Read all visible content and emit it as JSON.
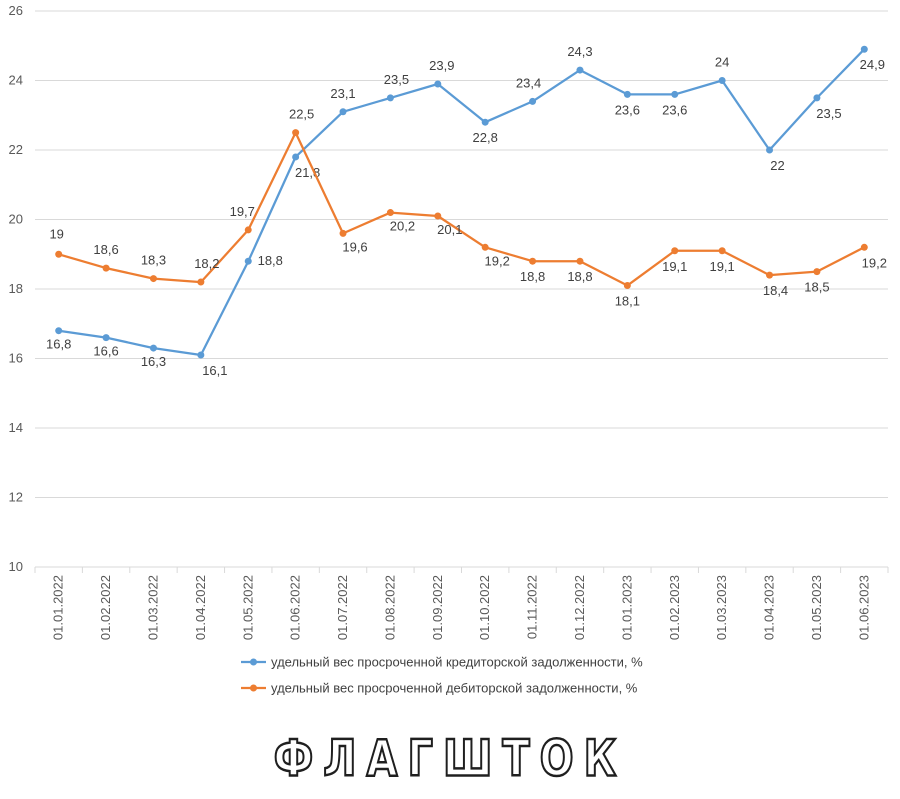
{
  "chart_data": {
    "type": "line",
    "title": "",
    "xlabel": "",
    "ylabel": "",
    "ylim": [
      10,
      26
    ],
    "yticks": [
      10,
      12,
      14,
      16,
      18,
      20,
      22,
      24,
      26
    ],
    "grid": "horizontal",
    "legend_position": "bottom",
    "categories": [
      "01.01.2022",
      "01.02.2022",
      "01.03.2022",
      "01.04.2022",
      "01.05.2022",
      "01.06.2022",
      "01.07.2022",
      "01.08.2022",
      "01.09.2022",
      "01.10.2022",
      "01.11.2022",
      "01.12.2022",
      "01.01.2023",
      "01.02.2023",
      "01.03.2023",
      "01.04.2023",
      "01.05.2023",
      "01.06.2023"
    ],
    "series": [
      {
        "name": "удельный вес просроченной кредиторской задолженности, %",
        "color": "#5b9bd5",
        "values": [
          16.8,
          16.6,
          16.3,
          16.1,
          18.8,
          21.8,
          23.1,
          23.5,
          23.9,
          22.8,
          23.4,
          24.3,
          23.6,
          23.6,
          24,
          22,
          23.5,
          24.9
        ],
        "labels": [
          "16,8",
          "16,6",
          "16,3",
          "16,1",
          "18,8",
          "21,8",
          "23,1",
          "23,5",
          "23,9",
          "22,8",
          "23,4",
          "24,3",
          "23,6",
          "23,6",
          "24",
          "22",
          "23,5",
          "24,9"
        ]
      },
      {
        "name": "удельный вес просроченной дебиторской задолженности, %",
        "color": "#ed7d31",
        "values": [
          19,
          18.6,
          18.3,
          18.2,
          19.7,
          22.5,
          19.6,
          20.2,
          20.1,
          19.2,
          18.8,
          18.8,
          18.1,
          19.1,
          19.1,
          18.4,
          18.5,
          19.2
        ],
        "labels": [
          "19",
          "18,6",
          "18,3",
          "18,2",
          "19,7",
          "22,5",
          "19,6",
          "20,2",
          "20,1",
          "19,2",
          "18,8",
          "18,8",
          "18,1",
          "19,1",
          "19,1",
          "18,4",
          "18,5",
          "19,2"
        ]
      }
    ]
  },
  "watermark": {
    "text": "ФЛАГШТОК"
  }
}
